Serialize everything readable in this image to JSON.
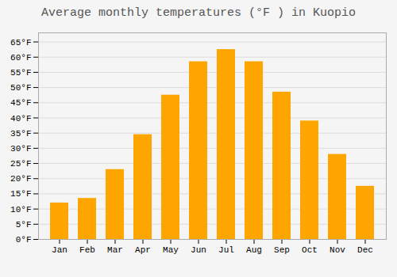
{
  "chart_data": {
    "type": "bar",
    "title": "Average monthly temperatures (°F ) in Kuopio",
    "categories": [
      "Jan",
      "Feb",
      "Mar",
      "Apr",
      "May",
      "Jun",
      "Jul",
      "Aug",
      "Sep",
      "Oct",
      "Nov",
      "Dec"
    ],
    "values": [
      12,
      13.5,
      23,
      34.5,
      47.5,
      58.5,
      62.5,
      58.5,
      48.5,
      39,
      28,
      17.5
    ],
    "color": "#FFA500",
    "ylim": [
      0,
      68
    ],
    "yticks": [
      {
        "value": 0,
        "label": "0°F"
      },
      {
        "value": 5,
        "label": "5°F"
      },
      {
        "value": 10,
        "label": "10°F"
      },
      {
        "value": 15,
        "label": "15°F"
      },
      {
        "value": 20,
        "label": "20°F"
      },
      {
        "value": 25,
        "label": "25°F"
      },
      {
        "value": 30,
        "label": "30°F"
      },
      {
        "value": 35,
        "label": "35°F"
      },
      {
        "value": 40,
        "label": "40°F"
      },
      {
        "value": 45,
        "label": "45°F"
      },
      {
        "value": 50,
        "label": "50°F"
      },
      {
        "value": 55,
        "label": "55°F"
      },
      {
        "value": 60,
        "label": "60°F"
      },
      {
        "value": 65,
        "label": "65°F"
      }
    ],
    "grid": true
  }
}
